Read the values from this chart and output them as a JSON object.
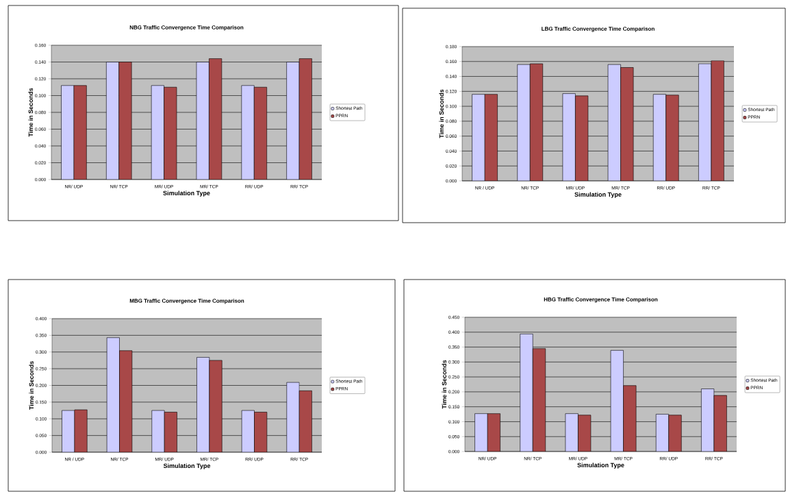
{
  "chart_data": [
    {
      "type": "bar",
      "title": "NBG Traffic Convergence Time Comparison",
      "xlabel": "Simulation Type",
      "ylabel": "Time in Seconds",
      "categories": [
        "NR/ UDP",
        "NR/ TCP",
        "MR/ UDP",
        "MR/ TCP",
        "RR/ UDP",
        "RR/ TCP"
      ],
      "series": [
        {
          "name": "Shortest Path",
          "color": "#ccccff",
          "values": [
            0.112,
            0.14,
            0.112,
            0.14,
            0.112,
            0.14
          ]
        },
        {
          "name": "PPRN",
          "color": "#a84848",
          "values": [
            0.112,
            0.14,
            0.11,
            0.144,
            0.11,
            0.144
          ]
        }
      ],
      "ylim": [
        0,
        0.16
      ],
      "yticks": [
        {
          "value": 0,
          "label": "0.000"
        },
        {
          "value": 0.02,
          "label": "0.020"
        },
        {
          "value": 0.04,
          "label": "0.040"
        },
        {
          "value": 0.06,
          "label": "0.060"
        },
        {
          "value": 0.08,
          "label": "0.080"
        },
        {
          "value": 0.1,
          "label": "0.100"
        },
        {
          "value": 0.12,
          "label": "0.120"
        },
        {
          "value": 0.14,
          "label": "0.140"
        },
        {
          "value": 0.16,
          "label": "0.160"
        }
      ],
      "grid": "y",
      "legend": "right"
    },
    {
      "type": "bar",
      "title": "LBG Traffic Convergence Time Comparison",
      "xlabel": "Simulation Type",
      "ylabel": "Time in Seconds",
      "categories": [
        "NR / UDP",
        "NR/ TCP",
        "MR/ UDP",
        "MR/ TCP",
        "RR/ UDP",
        "RR/ TCP"
      ],
      "series": [
        {
          "name": "Shortest Path",
          "color": "#ccccff",
          "values": [
            0.116,
            0.156,
            0.117,
            0.156,
            0.116,
            0.157
          ]
        },
        {
          "name": "PPRN",
          "color": "#a84848",
          "values": [
            0.116,
            0.157,
            0.114,
            0.152,
            0.115,
            0.161
          ]
        }
      ],
      "ylim": [
        0,
        0.18
      ],
      "yticks": [
        {
          "value": 0,
          "label": "0.000"
        },
        {
          "value": 0.02,
          "label": "0.020"
        },
        {
          "value": 0.04,
          "label": "0.040"
        },
        {
          "value": 0.06,
          "label": "0.060"
        },
        {
          "value": 0.08,
          "label": "0.080"
        },
        {
          "value": 0.1,
          "label": "0.100"
        },
        {
          "value": 0.12,
          "label": "0.120"
        },
        {
          "value": 0.14,
          "label": "0.140"
        },
        {
          "value": 0.16,
          "label": "0.160"
        },
        {
          "value": 0.18,
          "label": "0.180"
        }
      ],
      "grid": "y",
      "legend": "right"
    },
    {
      "type": "bar",
      "title": "MBG Traffic Convergence Time Comparison",
      "xlabel": "Simulation Type",
      "ylabel": "Time in Seconds",
      "categories": [
        "NR / UDP",
        "NR/ TCP",
        "MR/ UDP",
        "MR/ TCP",
        "RR/ UDP",
        "RR/ TCP"
      ],
      "series": [
        {
          "name": "Shortest Path",
          "color": "#ccccff",
          "values": [
            0.125,
            0.343,
            0.125,
            0.284,
            0.125,
            0.209
          ]
        },
        {
          "name": "PPRN",
          "color": "#a84848",
          "values": [
            0.127,
            0.304,
            0.12,
            0.275,
            0.12,
            0.184
          ]
        }
      ],
      "ylim": [
        0,
        0.4
      ],
      "yticks": [
        {
          "value": 0,
          "label": "0.000"
        },
        {
          "value": 0.05,
          "label": "0.050"
        },
        {
          "value": 0.1,
          "label": "0.100"
        },
        {
          "value": 0.15,
          "label": "0.150"
        },
        {
          "value": 0.2,
          "label": "0.200"
        },
        {
          "value": 0.25,
          "label": "0.250"
        },
        {
          "value": 0.3,
          "label": "0.300"
        },
        {
          "value": 0.35,
          "label": "0.350"
        },
        {
          "value": 0.4,
          "label": "0.400"
        }
      ],
      "grid": "y",
      "legend": "right"
    },
    {
      "type": "bar",
      "title": "HBG Traffic Convergence Time Comparison",
      "xlabel": "Simulation Type",
      "ylabel": "Time in Seconds",
      "categories": [
        "NR/ UDP",
        "NR/ TCP",
        "MR/ UDP",
        "MR/ TCP",
        "RR/ UDP",
        "RR/ TCP"
      ],
      "series": [
        {
          "name": "Shortest Path",
          "color": "#ccccff",
          "values": [
            0.127,
            0.394,
            0.127,
            0.339,
            0.125,
            0.21
          ]
        },
        {
          "name": "PPRN",
          "color": "#a84848",
          "values": [
            0.127,
            0.345,
            0.122,
            0.221,
            0.122,
            0.188
          ]
        }
      ],
      "ylim": [
        0,
        0.45
      ],
      "yticks": [
        {
          "value": 0,
          "label": "0.000"
        },
        {
          "value": 0.05,
          "label": "0.050"
        },
        {
          "value": 0.1,
          "label": "0.100"
        },
        {
          "value": 0.15,
          "label": "0.150"
        },
        {
          "value": 0.2,
          "label": "0.200"
        },
        {
          "value": 0.25,
          "label": "0.250"
        },
        {
          "value": 0.3,
          "label": "0.300"
        },
        {
          "value": 0.35,
          "label": "0.350"
        },
        {
          "value": 0.4,
          "label": "0.400"
        },
        {
          "value": 0.45,
          "label": "0.450"
        }
      ],
      "grid": "y",
      "legend": "right"
    }
  ]
}
